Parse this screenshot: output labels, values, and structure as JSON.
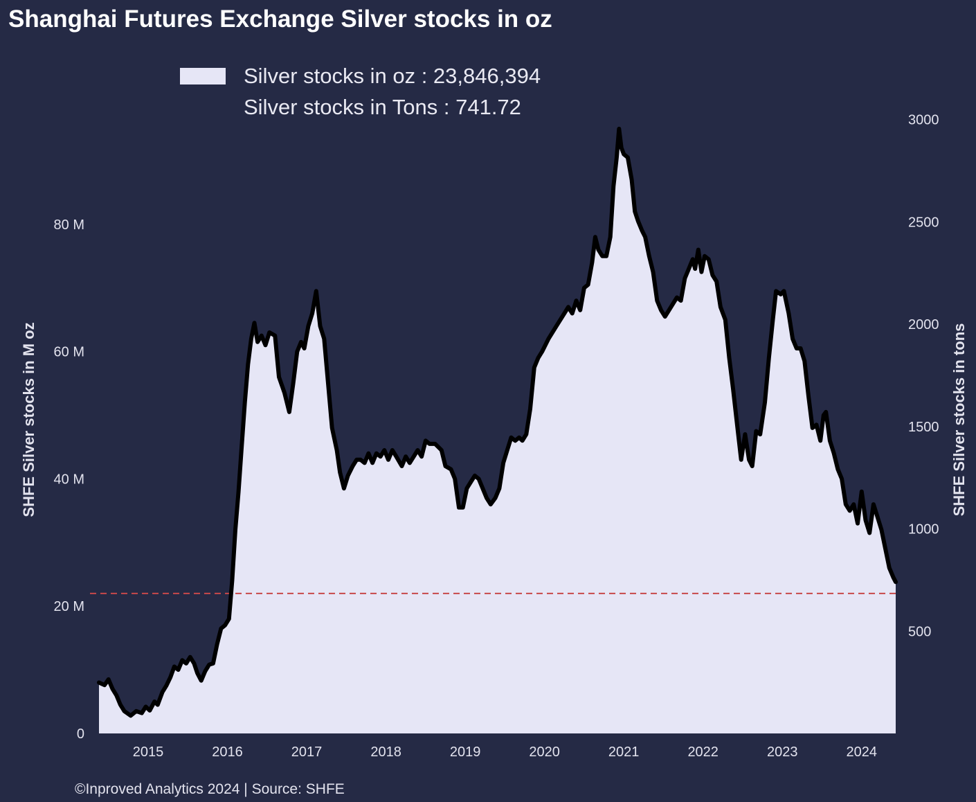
{
  "colors": {
    "background": "#252a45",
    "fill": "#e6e6f6",
    "line": "#000000",
    "reference": "#c8484a",
    "text": "#e3e3ee"
  },
  "chart_data": {
    "type": "area",
    "title": "Shanghai Futures Exchange Silver stocks in oz",
    "legend": {
      "placement": "top-left",
      "entries": [
        "Silver stocks in oz : 23,846,394",
        "Silver stocks in Tons : 741.72"
      ]
    },
    "ylabel_left": "SHFE Silver stocks in M oz",
    "ylabel_right": "SHFE Silver stocks in tons",
    "ylim_left": [
      0,
      100
    ],
    "ylim_right": [
      0,
      3110
    ],
    "yticks_left": [
      {
        "value": 0,
        "label": "0"
      },
      {
        "value": 20,
        "label": "20 M"
      },
      {
        "value": 40,
        "label": "40 M"
      },
      {
        "value": 60,
        "label": "60 M"
      },
      {
        "value": 80,
        "label": "80 M"
      }
    ],
    "yticks_right": [
      {
        "value": 500,
        "label": "500"
      },
      {
        "value": 1000,
        "label": "1000"
      },
      {
        "value": 1500,
        "label": "1500"
      },
      {
        "value": 2000,
        "label": "2000"
      },
      {
        "value": 2500,
        "label": "2500"
      },
      {
        "value": 3000,
        "label": "3000"
      }
    ],
    "xlim": [
      2014.38,
      2024.43
    ],
    "xticks": [
      {
        "value": 2015,
        "label": "2015"
      },
      {
        "value": 2016,
        "label": "2016"
      },
      {
        "value": 2017,
        "label": "2017"
      },
      {
        "value": 2018,
        "label": "2018"
      },
      {
        "value": 2019,
        "label": "2019"
      },
      {
        "value": 2020,
        "label": "2020"
      },
      {
        "value": 2021,
        "label": "2021"
      },
      {
        "value": 2022,
        "label": "2022"
      },
      {
        "value": 2023,
        "label": "2023"
      },
      {
        "value": 2024,
        "label": "2024"
      }
    ],
    "reference_line": {
      "value": 22,
      "style": "dashed"
    },
    "grid": false,
    "series": [
      {
        "values_unit": "M oz",
        "points": [
          [
            2014.38,
            8.0
          ],
          [
            2014.45,
            7.6
          ],
          [
            2014.5,
            8.5
          ],
          [
            2014.55,
            7.0
          ],
          [
            2014.6,
            6.0
          ],
          [
            2014.65,
            4.5
          ],
          [
            2014.7,
            3.5
          ],
          [
            2014.78,
            2.8
          ],
          [
            2014.85,
            3.5
          ],
          [
            2014.92,
            3.2
          ],
          [
            2014.97,
            4.2
          ],
          [
            2015.02,
            3.6
          ],
          [
            2015.08,
            5.0
          ],
          [
            2015.12,
            4.5
          ],
          [
            2015.18,
            6.5
          ],
          [
            2015.23,
            7.5
          ],
          [
            2015.28,
            8.8
          ],
          [
            2015.33,
            10.5
          ],
          [
            2015.38,
            10.0
          ],
          [
            2015.43,
            11.5
          ],
          [
            2015.48,
            11.0
          ],
          [
            2015.53,
            12.0
          ],
          [
            2015.58,
            11.0
          ],
          [
            2015.62,
            9.5
          ],
          [
            2015.67,
            8.3
          ],
          [
            2015.72,
            9.8
          ],
          [
            2015.77,
            10.8
          ],
          [
            2015.82,
            11.0
          ],
          [
            2015.87,
            14.0
          ],
          [
            2015.92,
            16.5
          ],
          [
            2015.97,
            17.0
          ],
          [
            2016.02,
            18.0
          ],
          [
            2016.06,
            24.0
          ],
          [
            2016.1,
            32.0
          ],
          [
            2016.14,
            38.0
          ],
          [
            2016.18,
            45.0
          ],
          [
            2016.22,
            52.0
          ],
          [
            2016.26,
            58.0
          ],
          [
            2016.3,
            62.0
          ],
          [
            2016.34,
            64.5
          ],
          [
            2016.38,
            61.5
          ],
          [
            2016.43,
            62.5
          ],
          [
            2016.48,
            61.0
          ],
          [
            2016.53,
            63.0
          ],
          [
            2016.6,
            62.5
          ],
          [
            2016.65,
            56.0
          ],
          [
            2016.72,
            53.5
          ],
          [
            2016.78,
            50.5
          ],
          [
            2016.83,
            55.0
          ],
          [
            2016.88,
            60.0
          ],
          [
            2016.93,
            61.5
          ],
          [
            2016.97,
            60.5
          ],
          [
            2017.02,
            64.0
          ],
          [
            2017.07,
            66.0
          ],
          [
            2017.12,
            69.5
          ],
          [
            2017.17,
            64.0
          ],
          [
            2017.22,
            62.0
          ],
          [
            2017.27,
            55.0
          ],
          [
            2017.32,
            48.0
          ],
          [
            2017.38,
            44.5
          ],
          [
            2017.42,
            41.0
          ],
          [
            2017.47,
            38.5
          ],
          [
            2017.52,
            40.5
          ],
          [
            2017.58,
            42.0
          ],
          [
            2017.63,
            43.0
          ],
          [
            2017.68,
            43.0
          ],
          [
            2017.73,
            42.5
          ],
          [
            2017.78,
            44.0
          ],
          [
            2017.83,
            42.5
          ],
          [
            2017.88,
            44.0
          ],
          [
            2017.93,
            43.5
          ],
          [
            2017.98,
            44.5
          ],
          [
            2018.03,
            43.0
          ],
          [
            2018.08,
            44.5
          ],
          [
            2018.13,
            43.5
          ],
          [
            2018.2,
            42.0
          ],
          [
            2018.25,
            43.5
          ],
          [
            2018.3,
            42.5
          ],
          [
            2018.35,
            43.5
          ],
          [
            2018.4,
            44.5
          ],
          [
            2018.45,
            43.5
          ],
          [
            2018.5,
            46.0
          ],
          [
            2018.55,
            45.5
          ],
          [
            2018.62,
            45.5
          ],
          [
            2018.7,
            44.5
          ],
          [
            2018.75,
            42.0
          ],
          [
            2018.82,
            41.5
          ],
          [
            2018.87,
            40.0
          ],
          [
            2018.92,
            35.5
          ],
          [
            2018.97,
            35.5
          ],
          [
            2019.02,
            38.5
          ],
          [
            2019.07,
            39.5
          ],
          [
            2019.12,
            40.5
          ],
          [
            2019.17,
            40.0
          ],
          [
            2019.22,
            38.5
          ],
          [
            2019.27,
            37.0
          ],
          [
            2019.32,
            36.0
          ],
          [
            2019.38,
            37.0
          ],
          [
            2019.43,
            38.5
          ],
          [
            2019.48,
            42.5
          ],
          [
            2019.53,
            44.5
          ],
          [
            2019.58,
            46.5
          ],
          [
            2019.63,
            46.0
          ],
          [
            2019.68,
            46.5
          ],
          [
            2019.72,
            46.0
          ],
          [
            2019.77,
            47.0
          ],
          [
            2019.82,
            51.0
          ],
          [
            2019.87,
            57.5
          ],
          [
            2019.92,
            59.0
          ],
          [
            2019.97,
            60.0
          ],
          [
            2020.05,
            62.0
          ],
          [
            2020.15,
            64.0
          ],
          [
            2020.25,
            66.0
          ],
          [
            2020.3,
            67.0
          ],
          [
            2020.35,
            66.0
          ],
          [
            2020.4,
            68.0
          ],
          [
            2020.45,
            66.5
          ],
          [
            2020.5,
            70.0
          ],
          [
            2020.55,
            70.5
          ],
          [
            2020.6,
            74.0
          ],
          [
            2020.64,
            78.0
          ],
          [
            2020.68,
            76.0
          ],
          [
            2020.73,
            75.0
          ],
          [
            2020.78,
            75.0
          ],
          [
            2020.83,
            78.0
          ],
          [
            2020.87,
            86.0
          ],
          [
            2020.91,
            90.5
          ],
          [
            2020.94,
            95.0
          ],
          [
            2020.97,
            92.0
          ],
          [
            2021.0,
            91.0
          ],
          [
            2021.05,
            90.5
          ],
          [
            2021.1,
            87.0
          ],
          [
            2021.14,
            82.0
          ],
          [
            2021.18,
            80.5
          ],
          [
            2021.23,
            79.0
          ],
          [
            2021.27,
            78.0
          ],
          [
            2021.32,
            75.0
          ],
          [
            2021.37,
            72.5
          ],
          [
            2021.42,
            68.0
          ],
          [
            2021.47,
            66.5
          ],
          [
            2021.52,
            65.5
          ],
          [
            2021.57,
            66.5
          ],
          [
            2021.62,
            67.5
          ],
          [
            2021.67,
            68.5
          ],
          [
            2021.72,
            68.0
          ],
          [
            2021.77,
            71.5
          ],
          [
            2021.82,
            73.0
          ],
          [
            2021.87,
            74.5
          ],
          [
            2021.9,
            73.0
          ],
          [
            2021.94,
            76.0
          ],
          [
            2021.98,
            72.5
          ],
          [
            2022.02,
            75.0
          ],
          [
            2022.07,
            74.5
          ],
          [
            2022.12,
            72.0
          ],
          [
            2022.17,
            71.0
          ],
          [
            2022.22,
            67.0
          ],
          [
            2022.28,
            65.0
          ],
          [
            2022.33,
            59.0
          ],
          [
            2022.38,
            54.0
          ],
          [
            2022.43,
            48.5
          ],
          [
            2022.48,
            43.0
          ],
          [
            2022.53,
            47.0
          ],
          [
            2022.58,
            43.0
          ],
          [
            2022.62,
            42.0
          ],
          [
            2022.67,
            47.5
          ],
          [
            2022.72,
            47.0
          ],
          [
            2022.78,
            52.0
          ],
          [
            2022.83,
            59.0
          ],
          [
            2022.88,
            65.0
          ],
          [
            2022.92,
            69.5
          ],
          [
            2022.98,
            69.0
          ],
          [
            2023.02,
            69.5
          ],
          [
            2023.08,
            66.0
          ],
          [
            2023.13,
            62.0
          ],
          [
            2023.18,
            60.5
          ],
          [
            2023.23,
            60.5
          ],
          [
            2023.28,
            58.5
          ],
          [
            2023.33,
            53.0
          ],
          [
            2023.38,
            48.0
          ],
          [
            2023.43,
            48.5
          ],
          [
            2023.48,
            46.0
          ],
          [
            2023.52,
            50.0
          ],
          [
            2023.55,
            50.5
          ],
          [
            2023.6,
            46.0
          ],
          [
            2023.65,
            44.0
          ],
          [
            2023.7,
            41.5
          ],
          [
            2023.75,
            40.0
          ],
          [
            2023.8,
            36.0
          ],
          [
            2023.85,
            35.0
          ],
          [
            2023.9,
            36.0
          ],
          [
            2023.95,
            33.0
          ],
          [
            2024.0,
            38.0
          ],
          [
            2024.05,
            33.5
          ],
          [
            2024.1,
            31.5
          ],
          [
            2024.15,
            36.0
          ],
          [
            2024.2,
            34.0
          ],
          [
            2024.25,
            32.0
          ],
          [
            2024.3,
            29.0
          ],
          [
            2024.35,
            26.0
          ],
          [
            2024.4,
            24.5
          ],
          [
            2024.43,
            23.8
          ]
        ]
      }
    ]
  },
  "footer": "©Inproved Analytics 2024 | Source: SHFE"
}
